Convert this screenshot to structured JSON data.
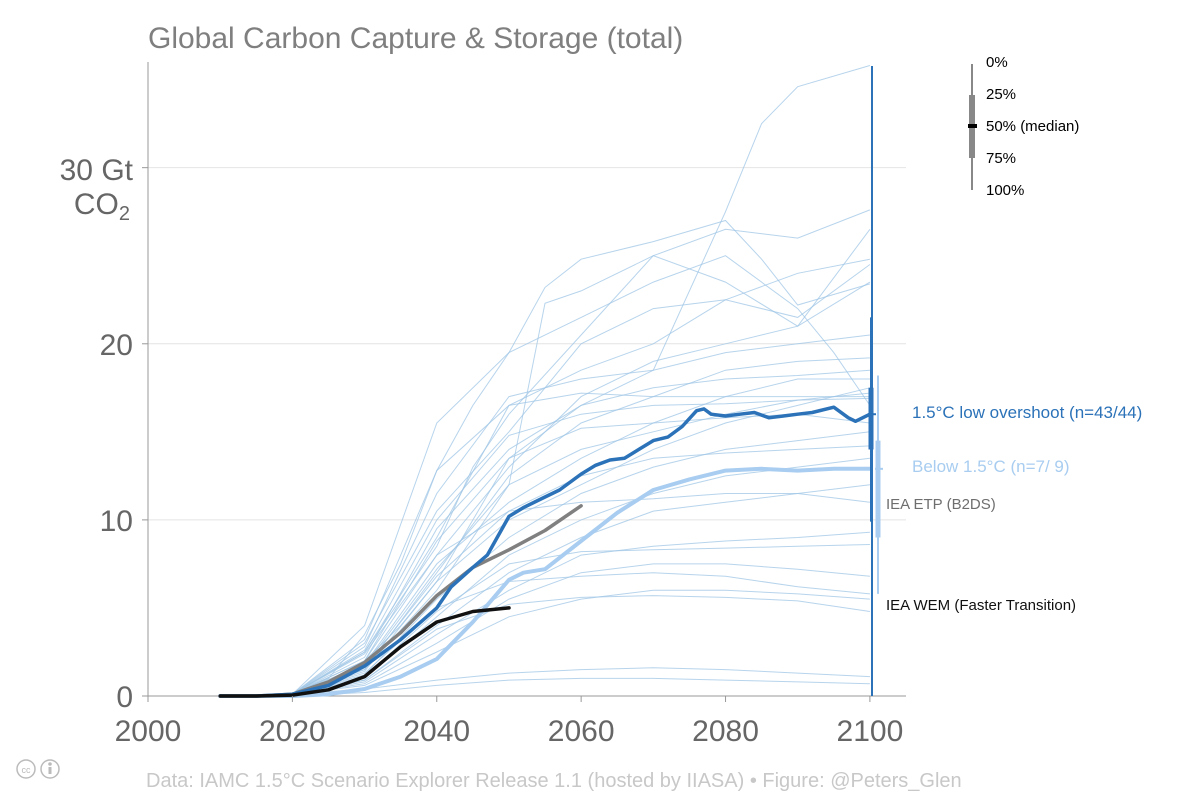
{
  "chart_data": {
    "type": "line",
    "title": "Global Carbon Capture & Storage (total)",
    "ylabel_line1": "30 Gt",
    "ylabel_line2": "CO",
    "ylabel_sub": "2",
    "xlim": [
      2000,
      2105
    ],
    "ylim": [
      0,
      36
    ],
    "xticks": [
      2000,
      2020,
      2040,
      2060,
      2080,
      2100
    ],
    "yticks": [
      0,
      10,
      20
    ],
    "grid": "horizontal",
    "colors": {
      "low_overshoot": "#2b72b8",
      "below_15": "#a8cdf0",
      "etp": "#808080",
      "wem": "#111111",
      "thin": "#9fc5e6",
      "axis": "#999999"
    },
    "series": [
      {
        "name": "1.5°C low overshoot (n=43/44)",
        "kind": "median_low_overshoot",
        "x": [
          2010,
          2015,
          2020,
          2025,
          2030,
          2035,
          2040,
          2042,
          2045,
          2047,
          2050,
          2052,
          2055,
          2057,
          2060,
          2062,
          2064,
          2066,
          2068,
          2070,
          2072,
          2074,
          2076,
          2077,
          2078,
          2080,
          2082,
          2084,
          2086,
          2088,
          2090,
          2092,
          2095,
          2097,
          2098,
          2100
        ],
        "y": [
          0.0,
          0.0,
          0.1,
          0.6,
          1.7,
          3.2,
          5.0,
          6.2,
          7.3,
          8.0,
          10.2,
          10.7,
          11.3,
          11.7,
          12.6,
          13.1,
          13.4,
          13.5,
          14.0,
          14.5,
          14.7,
          15.3,
          16.2,
          16.3,
          16.0,
          15.9,
          16.0,
          16.1,
          15.8,
          15.9,
          16.0,
          16.1,
          16.4,
          15.8,
          15.6,
          16.0
        ]
      },
      {
        "name": "Below 1.5°C (n=7/ 9)",
        "kind": "median_below",
        "x": [
          2010,
          2015,
          2020,
          2025,
          2030,
          2035,
          2040,
          2045,
          2050,
          2052,
          2055,
          2060,
          2065,
          2070,
          2075,
          2080,
          2085,
          2090,
          2095,
          2100
        ],
        "y": [
          0.0,
          0.0,
          0.0,
          0.1,
          0.4,
          1.1,
          2.1,
          4.2,
          6.6,
          7.0,
          7.2,
          8.8,
          10.4,
          11.7,
          12.3,
          12.8,
          12.9,
          12.8,
          12.9,
          12.9
        ]
      },
      {
        "name": "IEA ETP (B2DS)",
        "kind": "etp",
        "x": [
          2010,
          2015,
          2020,
          2025,
          2030,
          2035,
          2040,
          2045,
          2050,
          2055,
          2060
        ],
        "y": [
          0.0,
          0.0,
          0.1,
          0.8,
          1.9,
          3.6,
          5.7,
          7.3,
          8.3,
          9.4,
          10.8
        ]
      },
      {
        "name": "IEA WEM (Faster Transition)",
        "kind": "wem",
        "x": [
          2010,
          2015,
          2020,
          2025,
          2030,
          2035,
          2040,
          2045,
          2050
        ],
        "y": [
          0.0,
          0.0,
          0.05,
          0.35,
          1.1,
          2.8,
          4.2,
          4.8,
          5.0
        ]
      }
    ],
    "scenarios": [
      {
        "x": [
          2020,
          2025,
          2030,
          2035,
          2040,
          2045,
          2050,
          2055,
          2060,
          2070,
          2080,
          2085,
          2090,
          2100
        ],
        "y": [
          0.1,
          1.0,
          3.5,
          7.5,
          12.8,
          16.5,
          19.5,
          23.2,
          24.8,
          25.8,
          27.0,
          24.8,
          22.2,
          23.4
        ]
      },
      {
        "x": [
          2020,
          2025,
          2030,
          2035,
          2040,
          2045,
          2050,
          2060,
          2070,
          2080,
          2085,
          2090,
          2100
        ],
        "y": [
          0.1,
          0.8,
          2.0,
          4.0,
          6.5,
          10.0,
          13.5,
          16.5,
          18.5,
          27.5,
          32.5,
          34.6,
          35.8
        ]
      },
      {
        "x": [
          2020,
          2030,
          2040,
          2045,
          2050,
          2060,
          2070,
          2080,
          2090,
          2100
        ],
        "y": [
          0.1,
          2.5,
          8.5,
          13.0,
          16.0,
          20.5,
          25.0,
          26.5,
          26.0,
          27.6
        ]
      },
      {
        "x": [
          2020,
          2030,
          2040,
          2050,
          2055,
          2060,
          2070,
          2080,
          2090,
          2100
        ],
        "y": [
          0.1,
          1.5,
          6.0,
          12.0,
          22.3,
          23.0,
          25.0,
          23.5,
          21.0,
          26.5
        ]
      },
      {
        "x": [
          2020,
          2030,
          2040,
          2050,
          2060,
          2070,
          2080,
          2090,
          2095,
          2100
        ],
        "y": [
          0.1,
          4.0,
          15.5,
          19.5,
          21.5,
          23.5,
          25.0,
          22.0,
          19.5,
          16.5
        ]
      },
      {
        "x": [
          2020,
          2030,
          2040,
          2050,
          2060,
          2070,
          2080,
          2090,
          2100
        ],
        "y": [
          0.1,
          3.0,
          10.5,
          15.0,
          20.0,
          22.0,
          22.5,
          24.0,
          24.8
        ]
      },
      {
        "x": [
          2020,
          2030,
          2040,
          2050,
          2060,
          2070,
          2080,
          2090,
          2100
        ],
        "y": [
          0.1,
          2.5,
          9.0,
          16.5,
          18.5,
          20.0,
          22.5,
          21.5,
          24.5
        ]
      },
      {
        "x": [
          2020,
          2030,
          2040,
          2050,
          2060,
          2070,
          2080,
          2090,
          2100
        ],
        "y": [
          0.1,
          2.0,
          8.0,
          13.0,
          17.0,
          19.0,
          20.0,
          21.0,
          23.5
        ]
      },
      {
        "x": [
          2020,
          2030,
          2040,
          2050,
          2060,
          2070,
          2080,
          2090,
          2100
        ],
        "y": [
          0.1,
          2.8,
          11.5,
          17.0,
          18.0,
          18.5,
          19.5,
          20.0,
          20.5
        ]
      },
      {
        "x": [
          2020,
          2030,
          2040,
          2050,
          2060,
          2070,
          2080,
          2090,
          2100
        ],
        "y": [
          0.1,
          1.5,
          7.0,
          12.5,
          15.5,
          17.0,
          18.5,
          19.0,
          19.2
        ]
      },
      {
        "x": [
          2020,
          2030,
          2040,
          2050,
          2060,
          2070,
          2080,
          2090,
          2100
        ],
        "y": [
          0.1,
          2.2,
          9.5,
          14.0,
          16.5,
          17.5,
          18.0,
          18.2,
          18.5
        ]
      },
      {
        "x": [
          2020,
          2030,
          2040,
          2050,
          2060,
          2070,
          2080,
          2090,
          2100
        ],
        "y": [
          0.1,
          1.8,
          7.5,
          11.0,
          13.5,
          15.5,
          17.0,
          18.0,
          18.0
        ]
      },
      {
        "x": [
          2020,
          2030,
          2040,
          2050,
          2060,
          2070,
          2080,
          2090,
          2100
        ],
        "y": [
          0.1,
          3.2,
          12.8,
          16.5,
          17.2,
          17.0,
          17.0,
          17.0,
          17.0
        ]
      },
      {
        "x": [
          2020,
          2030,
          2040,
          2050,
          2060,
          2070,
          2080,
          2090,
          2100
        ],
        "y": [
          0.1,
          1.4,
          6.5,
          10.0,
          12.0,
          14.0,
          15.5,
          16.5,
          17.5
        ]
      },
      {
        "x": [
          2020,
          2030,
          2040,
          2050,
          2060,
          2070,
          2080,
          2090,
          2100
        ],
        "y": [
          0.1,
          2.0,
          8.8,
          13.5,
          15.2,
          15.5,
          15.8,
          16.0,
          15.5
        ]
      },
      {
        "x": [
          2020,
          2030,
          2040,
          2050,
          2060,
          2070,
          2080,
          2090,
          2100
        ],
        "y": [
          0.1,
          1.2,
          5.5,
          9.0,
          11.5,
          13.0,
          14.0,
          14.5,
          15.0
        ]
      },
      {
        "x": [
          2020,
          2030,
          2040,
          2050,
          2060,
          2070,
          2080,
          2090,
          2100
        ],
        "y": [
          0.1,
          1.6,
          6.8,
          10.5,
          12.5,
          13.5,
          13.8,
          14.0,
          14.2
        ]
      },
      {
        "x": [
          2020,
          2030,
          2040,
          2050,
          2060,
          2070,
          2080,
          2090,
          2100
        ],
        "y": [
          0.1,
          1.0,
          4.5,
          8.0,
          10.0,
          11.5,
          12.5,
          13.0,
          13.5
        ]
      },
      {
        "x": [
          2020,
          2030,
          2040,
          2050,
          2060,
          2070,
          2080,
          2090,
          2100
        ],
        "y": [
          0.1,
          0.9,
          4.0,
          7.0,
          9.0,
          10.5,
          11.0,
          11.5,
          12.0
        ]
      },
      {
        "x": [
          2020,
          2030,
          2040,
          2050,
          2060,
          2070,
          2080,
          2090,
          2100
        ],
        "y": [
          0.1,
          2.4,
          8.0,
          10.5,
          11.0,
          11.2,
          11.5,
          11.5,
          11.0
        ]
      },
      {
        "x": [
          2020,
          2030,
          2040,
          2050,
          2060,
          2070,
          2080,
          2090,
          2100
        ],
        "y": [
          0.1,
          0.8,
          3.5,
          6.0,
          8.0,
          8.5,
          8.8,
          9.0,
          9.3
        ]
      },
      {
        "x": [
          2020,
          2030,
          2040,
          2050,
          2060,
          2070,
          2080,
          2090,
          2100
        ],
        "y": [
          0.1,
          1.1,
          4.8,
          7.5,
          8.2,
          8.3,
          8.4,
          8.5,
          8.6
        ]
      },
      {
        "x": [
          2020,
          2030,
          2040,
          2050,
          2060,
          2070,
          2080,
          2090,
          2100
        ],
        "y": [
          0.1,
          0.7,
          3.0,
          5.5,
          7.0,
          7.5,
          7.5,
          7.2,
          6.8
        ]
      },
      {
        "x": [
          2020,
          2030,
          2040,
          2050,
          2060,
          2070,
          2080,
          2090,
          2100
        ],
        "y": [
          0.1,
          1.3,
          5.0,
          6.5,
          6.8,
          7.0,
          6.8,
          6.2,
          5.8
        ]
      },
      {
        "x": [
          2020,
          2030,
          2040,
          2050,
          2060,
          2070,
          2080,
          2090,
          2100
        ],
        "y": [
          0.1,
          0.6,
          2.5,
          4.5,
          5.5,
          6.0,
          6.0,
          5.8,
          5.5
        ]
      },
      {
        "x": [
          2020,
          2030,
          2040,
          2050,
          2060,
          2070,
          2080,
          2090,
          2100
        ],
        "y": [
          0.1,
          0.9,
          3.8,
          5.2,
          5.6,
          5.7,
          5.6,
          5.4,
          4.8
        ]
      },
      {
        "x": [
          2020,
          2030,
          2040,
          2050,
          2060,
          2070,
          2080,
          2090,
          2100
        ],
        "y": [
          0.1,
          0.4,
          0.9,
          1.3,
          1.5,
          1.6,
          1.5,
          1.3,
          1.1
        ]
      },
      {
        "x": [
          2020,
          2030,
          2040,
          2050,
          2060,
          2070,
          2080,
          2090,
          2100
        ],
        "y": [
          0.0,
          0.2,
          0.6,
          0.9,
          1.0,
          1.0,
          0.9,
          0.8,
          0.7
        ]
      },
      {
        "x": [
          2020,
          2030,
          2040,
          2050,
          2060,
          2070,
          2080,
          2090,
          2100
        ],
        "y": [
          0.1,
          1.7,
          7.2,
          12.0,
          14.0,
          15.0,
          16.0,
          16.8,
          17.2
        ]
      },
      {
        "x": [
          2020,
          2030,
          2040,
          2050,
          2060,
          2070,
          2080,
          2090,
          2100
        ],
        "y": [
          0.1,
          2.6,
          10.0,
          14.8,
          16.0,
          16.5,
          16.6,
          16.8,
          16.9
        ]
      }
    ],
    "end_markers": [
      {
        "name": "1.5°C low overshoot (n=43/44)",
        "range": [
          9.9,
          21.5
        ],
        "iqr": [
          14.0,
          17.5
        ],
        "median": 16.0
      },
      {
        "name": "Below 1.5°C (n=7/ 9)",
        "range": [
          5.8,
          18.2
        ],
        "iqr": [
          9.0,
          14.5
        ],
        "median": 12.9
      }
    ],
    "labels": {
      "low_overshoot": "1.5°C low overshoot (n=43/44)",
      "below": "Below 1.5°C (n=7/ 9)",
      "etp": "IEA ETP (B2DS)",
      "wem": "IEA WEM (Faster Transition)"
    },
    "legend": {
      "items": [
        "0%",
        "25%",
        "50% (median)",
        "75%",
        "100%"
      ],
      "placement": "top-right"
    },
    "footer": "Data: IAMC 1.5°C Scenario Explorer Release 1.1 (hosted by IIASA)  •  Figure: @Peters_Glen"
  }
}
